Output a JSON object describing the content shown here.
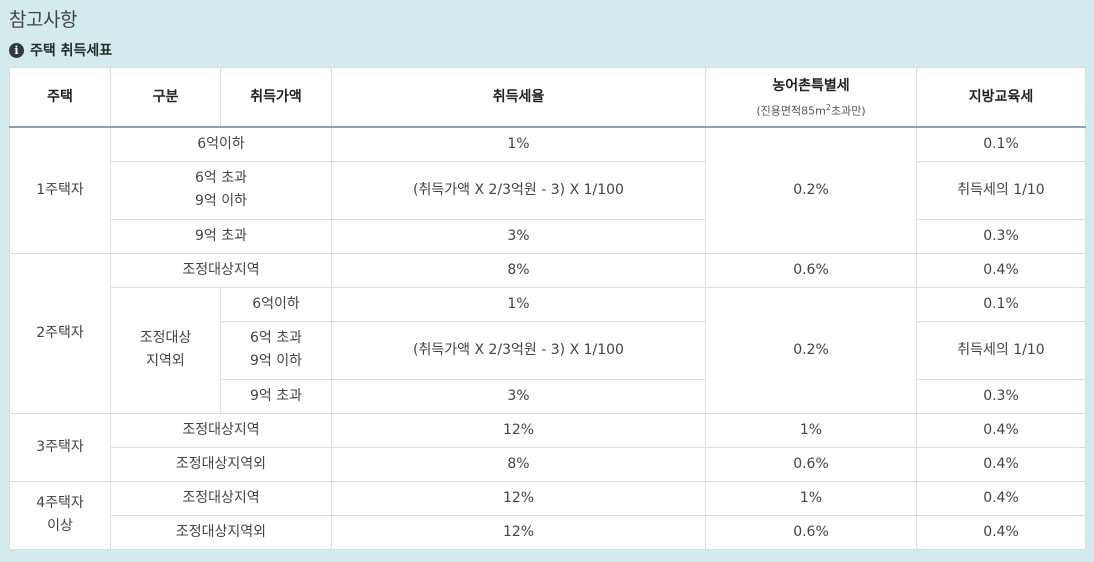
{
  "page": {
    "title": "참고사항",
    "section_title": "주택 취득세표"
  },
  "table": {
    "headers": {
      "house": "주택",
      "category": "구분",
      "price": "취득가액",
      "rate": "취득세율",
      "rural_tax": "농어촌특별세",
      "rural_note_pre": "(진용면적85m",
      "rural_note_sup": "2",
      "rural_note_post": "초과만)",
      "edu_tax": "지방교육세"
    },
    "one_house": {
      "label": "1주택자",
      "rows": [
        {
          "price": "6억이하",
          "rate": "1%",
          "edu": "0.1%"
        },
        {
          "price_l1": "6억 초과",
          "price_l2": "9억 이하",
          "rate": "(취득가액 X 2/3억원 - 3) X 1/100",
          "edu": "취득세의 1/10"
        },
        {
          "price": "9억 초과",
          "rate": "3%",
          "edu": "0.3%"
        }
      ],
      "rural": "0.2%"
    },
    "two_house": {
      "label": "2주택자",
      "adjusted": {
        "label": "조정대상지역",
        "rate": "8%",
        "rural": "0.6%",
        "edu": "0.4%"
      },
      "non_adjusted_l1": "조정대상",
      "non_adjusted_l2": "지역외",
      "rows": [
        {
          "price": "6억이하",
          "rate": "1%",
          "edu": "0.1%"
        },
        {
          "price_l1": "6억 초과",
          "price_l2": "9억 이하",
          "rate": "(취득가액 X 2/3억원 - 3) X 1/100",
          "edu": "취득세의 1/10"
        },
        {
          "price": "9억 초과",
          "rate": "3%",
          "edu": "0.3%"
        }
      ],
      "rural": "0.2%"
    },
    "three_house": {
      "label": "3주택자",
      "rows": [
        {
          "cat": "조정대상지역",
          "rate": "12%",
          "rural": "1%",
          "edu": "0.4%"
        },
        {
          "cat": "조정대상지역외",
          "rate": "8%",
          "rural": "0.6%",
          "edu": "0.4%"
        }
      ]
    },
    "four_house": {
      "label_l1": "4주택자",
      "label_l2": "이상",
      "rows": [
        {
          "cat": "조정대상지역",
          "rate": "12%",
          "rural": "1%",
          "edu": "0.4%"
        },
        {
          "cat": "조정대상지역외",
          "rate": "12%",
          "rural": "0.6%",
          "edu": "0.4%"
        }
      ]
    }
  }
}
